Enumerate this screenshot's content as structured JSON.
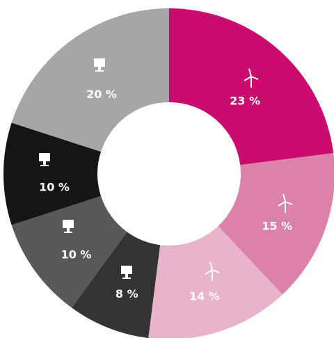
{
  "chart_data": {
    "type": "donut",
    "values": [
      23,
      15,
      14,
      8,
      10,
      10,
      20
    ],
    "value_labels": [
      "23 %",
      "15 %",
      "14 %",
      "8 %",
      "10 %",
      "10 %",
      "20 %"
    ],
    "colors": [
      "#c90c6e",
      "#dc81a9",
      "#e8b4cb",
      "#343334",
      "#58575a",
      "#141615",
      "#a6a5a7"
    ]
  }
}
